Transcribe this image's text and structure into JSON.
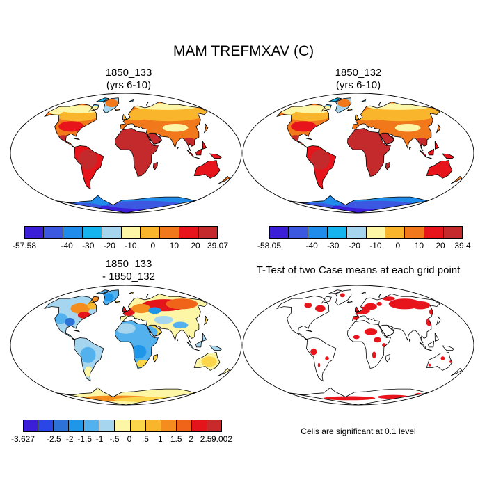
{
  "title": "MAM TREFMXAV (C)",
  "panels": [
    {
      "id": "p1",
      "title_line1": "1850_133",
      "title_line2": "(yrs 6-10)",
      "kind": "abs",
      "colorbar": {
        "colors": [
          "#3a1ed8",
          "#3c57e0",
          "#1f8bea",
          "#16b4ee",
          "#a5d5ef",
          "#fdf6a6",
          "#f9b52c",
          "#f2781c",
          "#e8141c",
          "#c42a2c"
        ],
        "labels": [
          "-57.58",
          "-40",
          "-30",
          "-20",
          "-10",
          "0",
          "10",
          "20",
          "39.07"
        ]
      }
    },
    {
      "id": "p2",
      "title_line1": "1850_132",
      "title_line2": "(yrs 6-10)",
      "kind": "abs",
      "colorbar": {
        "colors": [
          "#3a1ed8",
          "#3c57e0",
          "#1f8bea",
          "#16b4ee",
          "#a5d5ef",
          "#fdf6a6",
          "#f9b52c",
          "#f2781c",
          "#e8141c",
          "#c42a2c"
        ],
        "labels": [
          "-58.05",
          "-40",
          "-30",
          "-20",
          "-10",
          "0",
          "10",
          "20",
          "39.4"
        ]
      }
    },
    {
      "id": "p3",
      "title_line1": "1850_133",
      "title_line2": "- 1850_132",
      "kind": "diff",
      "colorbar": {
        "colors": [
          "#3a1ed8",
          "#2b46e6",
          "#2d72d6",
          "#1f96e8",
          "#53b2ee",
          "#a5d5ef",
          "#fdf6a6",
          "#fbd64b",
          "#f9b52c",
          "#f58d1e",
          "#f0641a",
          "#e3151b",
          "#c82a2c"
        ],
        "labels": [
          "-3.627",
          "-2.5",
          "-2",
          "-1.5",
          "-1",
          "-.5",
          "0",
          ".5",
          "1",
          "1.5",
          "2",
          "2.5",
          "9.002"
        ]
      }
    },
    {
      "id": "p4",
      "title": "T-Test of two Case means at each grid point",
      "kind": "ttest",
      "note": "Cells are significant at 0.1 level"
    }
  ]
}
